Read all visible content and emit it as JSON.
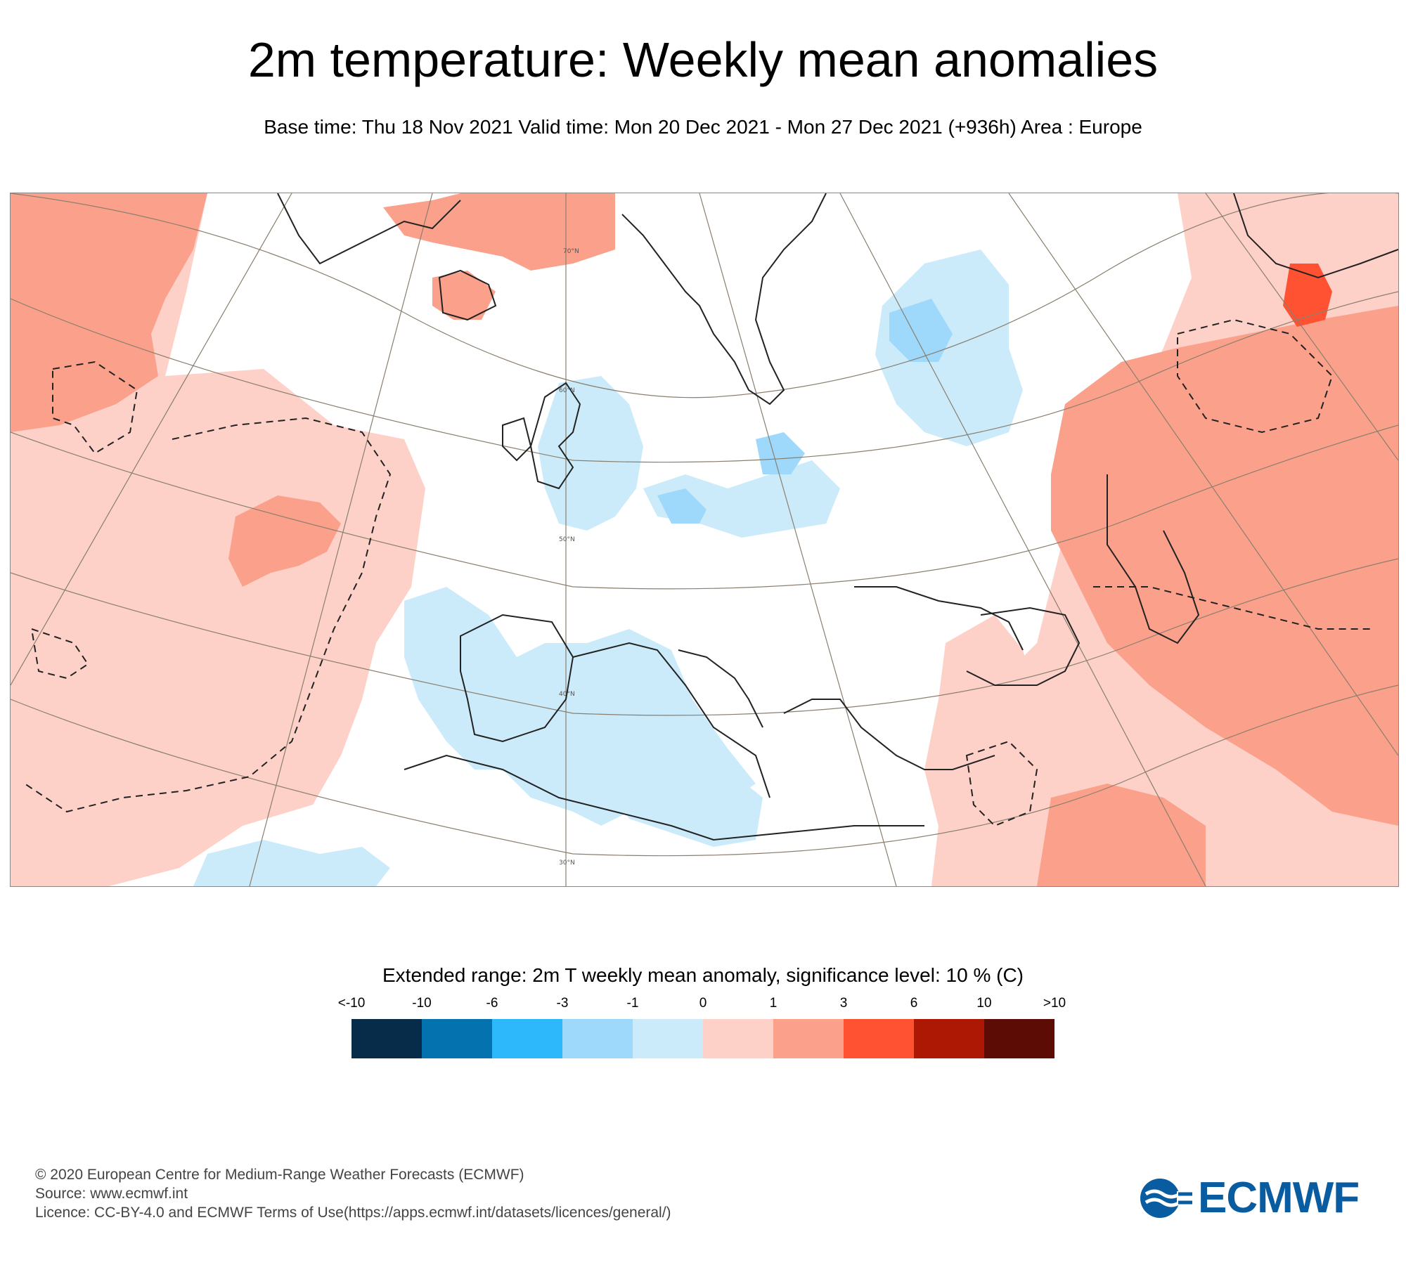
{
  "title": "2m temperature: Weekly mean anomalies",
  "subtitle": "Base time: Thu 18 Nov 2021 Valid time: Mon 20 Dec 2021 - Mon 27 Dec 2021 (+936h) Area : Europe",
  "map": {
    "latitude_labels": [
      "70°N",
      "60°N",
      "50°N",
      "40°N",
      "30°N"
    ],
    "features": [
      {
        "region": "North-west Atlantic / Labrador Sea",
        "anomaly_class": "1 to 3"
      },
      {
        "region": "Central North Atlantic",
        "anomaly_class": "0 to 1"
      },
      {
        "region": "Mid-Atlantic core",
        "anomaly_class": "1 to 3"
      },
      {
        "region": "British Isles / North Sea",
        "anomaly_class": "-1 to 0"
      },
      {
        "region": "Iberia / Western Mediterranean",
        "anomaly_class": "-1 to 0"
      },
      {
        "region": "North Africa",
        "anomaly_class": "-1 to 0"
      },
      {
        "region": "Gulf of Bothnia / Western Russia",
        "anomaly_class": "-1 to 0"
      },
      {
        "region": "Northern Russia",
        "anomaly_class": "1 to 3"
      },
      {
        "region": "Ural region",
        "anomaly_class": "3 to 6"
      },
      {
        "region": "Kazakhstan / Middle East",
        "anomaly_class": "1 to 3"
      },
      {
        "region": "Turkey / Eastern Mediterranean",
        "anomaly_class": "0 to 1"
      }
    ]
  },
  "legend": {
    "title": "Extended range: 2m T weekly mean anomaly, significance level: 10 % (C)",
    "tick_labels": [
      "<-10",
      "-10",
      "-6",
      "-3",
      "-1",
      "0",
      "1",
      "3",
      "6",
      "10",
      ">10"
    ],
    "colors": [
      "#062c4a",
      "#0572b0",
      "#2db8fc",
      "#9ed9fc",
      "#cbebfb",
      "#fdd0c8",
      "#fba08a",
      "#fe5233",
      "#ac1804",
      "#5c0c04"
    ]
  },
  "footer": {
    "copyright": "© 2020 European Centre for Medium-Range Weather Forecasts (ECMWF)",
    "source": "Source: www.ecmwf.int",
    "licence": "Licence: CC-BY-4.0 and ECMWF Terms of Use(https://apps.ecmwf.int/datasets/licences/general/)"
  },
  "logo": {
    "text": "ECMWF",
    "color": "#0a5ca1"
  }
}
